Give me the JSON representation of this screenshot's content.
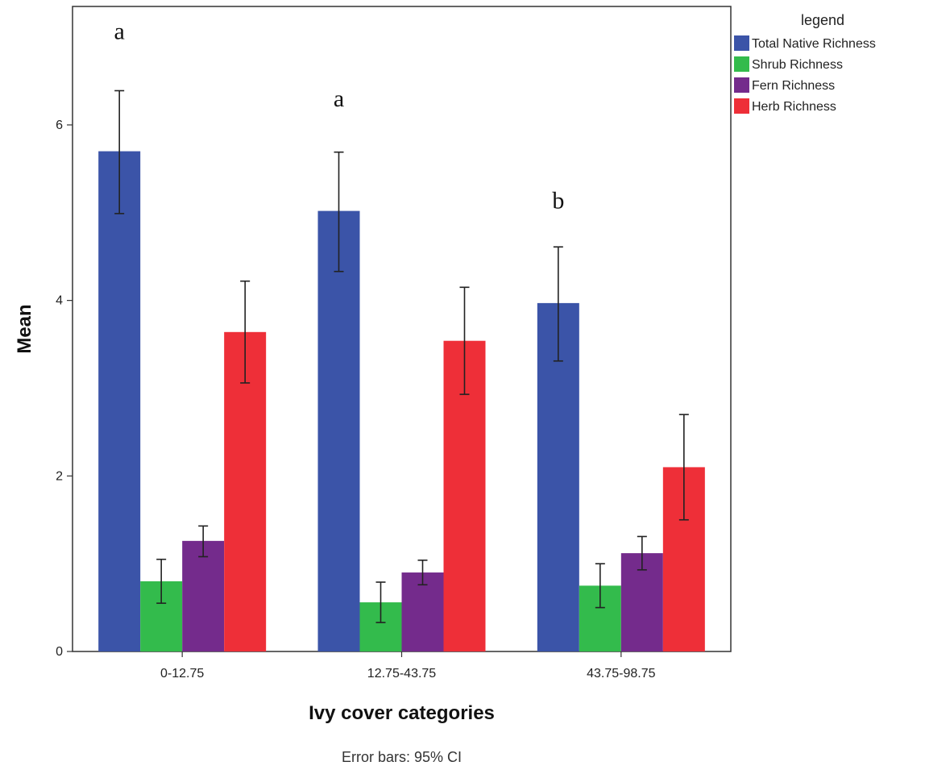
{
  "chart_data": {
    "type": "bar",
    "categories": [
      "0-12.75",
      "12.75-43.75",
      "43.75-98.75"
    ],
    "series": [
      {
        "name": "Total Native Richness",
        "color": "#3b54a8",
        "values": [
          5.7,
          5.02,
          3.97
        ],
        "ci_low": [
          4.99,
          4.33,
          3.31
        ],
        "ci_high": [
          6.39,
          5.69,
          4.61
        ]
      },
      {
        "name": "Shrub Richness",
        "color": "#33bb4c",
        "values": [
          0.8,
          0.56,
          0.75
        ],
        "ci_low": [
          0.55,
          0.33,
          0.5
        ],
        "ci_high": [
          1.05,
          0.79,
          1.0
        ]
      },
      {
        "name": "Fern Richness",
        "color": "#742b8c",
        "values": [
          1.26,
          0.9,
          1.12
        ],
        "ci_low": [
          1.08,
          0.76,
          0.93
        ],
        "ci_high": [
          1.43,
          1.04,
          1.31
        ]
      },
      {
        "name": "Herb Richness",
        "color": "#ee2f38",
        "values": [
          3.64,
          3.54,
          2.1
        ],
        "ci_low": [
          3.06,
          2.93,
          1.5
        ],
        "ci_high": [
          4.22,
          4.15,
          2.7
        ]
      }
    ],
    "xlabel": "Ivy cover categories",
    "ylabel": "Mean",
    "ylim": [
      0,
      7.35
    ],
    "yticks": [
      0,
      2,
      4,
      6
    ],
    "legend": {
      "title": "legend",
      "placement": "outside-top-right"
    },
    "annotations": [
      {
        "text": "a",
        "category": "0-12.75",
        "y": 6.98
      },
      {
        "text": "a",
        "category": "12.75-43.75",
        "y": 6.21
      },
      {
        "text": "b",
        "category": "43.75-98.75",
        "y": 5.05
      }
    ],
    "footnote": "Error bars: 95% CI",
    "grid": false
  }
}
